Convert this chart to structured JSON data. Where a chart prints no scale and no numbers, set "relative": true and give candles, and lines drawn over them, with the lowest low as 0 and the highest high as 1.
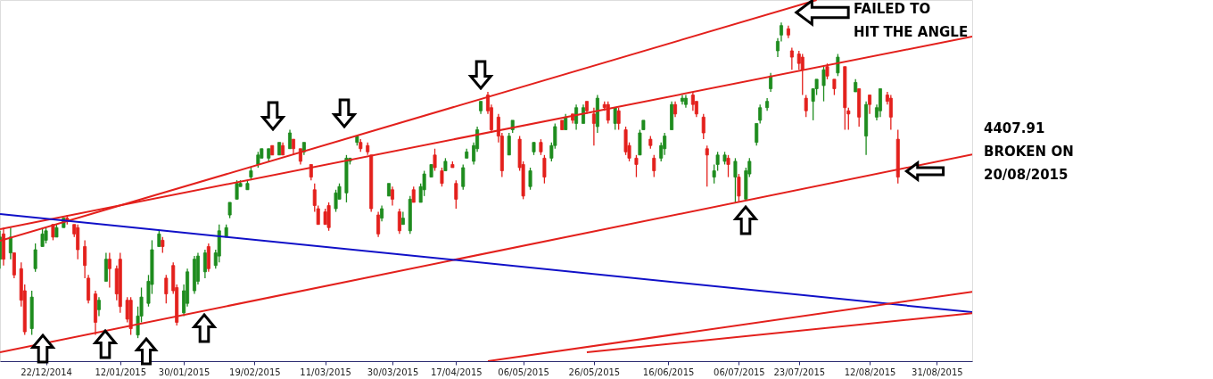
{
  "chart_data": {
    "type": "candlestick",
    "relative": true,
    "annotations": [
      "FAILED TO\nHIT THE ANGLE",
      "4407.91\nBROKEN ON\n20/08/2015"
    ],
    "colors": [
      "#1e8c1e",
      "#e3201c",
      "#1e8c1e",
      "#e3201c",
      "#e3201c",
      "#e3201c",
      "#1e8c1e",
      "#1e8c1e",
      "#1e8c1e",
      "#1e8c1e",
      "#e3201c",
      "#1e8c1e",
      "#1e8c1e",
      "#e3201c",
      "#e3201c",
      "#e3201c",
      "#e3201c",
      "#e3201c",
      "#e3201c",
      "#1e8c1e",
      "#1e8c1e",
      "#e3201c",
      "#e3201c",
      "#e3201c",
      "#e3201c",
      "#e3201c",
      "#1e8c1e",
      "#1e8c1e",
      "#1e8c1e",
      "#1e8c1e",
      "#1e8c1e",
      "#e3201c",
      "#e3201c",
      "#e3201c",
      "#e3201c",
      "#1e8c1e",
      "#1e8c1e",
      "#1e8c1e",
      "#1e8c1e",
      "#1e8c1e",
      "#e3201c",
      "#1e8c1e",
      "#1e8c1e",
      "#1e8c1e",
      "#1e8c1e",
      "#1e8c1e",
      "#1e8c1e",
      "#1e8c1e",
      "#1e8c1e",
      "#1e8c1e",
      "#1e8c1e",
      "#1e8c1e",
      "#e3201c",
      "#1e8c1e",
      "#e3201c",
      "#1e8c1e",
      "#e3201c",
      "#e3201c",
      "#1e8c1e",
      "#e3201c",
      "#e3201c",
      "#e3201c",
      "#e3201c",
      "#e3201c",
      "#1e8c1e",
      "#1e8c1e",
      "#1e8c1e",
      "#1e8c1e",
      "#1e8c1e",
      "#e3201c",
      "#e3201c",
      "#e3201c",
      "#e3201c",
      "#1e8c1e",
      "#1e8c1e",
      "#e3201c",
      "#e3201c",
      "#1e8c1e",
      "#1e8c1e",
      "#e3201c",
      "#1e8c1e",
      "#1e8c1e",
      "#1e8c1e",
      "#e3201c",
      "#e3201c",
      "#1e8c1e",
      "#e3201c",
      "#e3201c",
      "#1e8c1e",
      "#1e8c1e",
      "#1e8c1e",
      "#1e8c1e",
      "#1e8c1e",
      "#e3201c",
      "#e3201c",
      "#e3201c",
      "#e3201c",
      "#1e8c1e",
      "#1e8c1e",
      "#e3201c",
      "#e3201c",
      "#1e8c1e",
      "#1e8c1e",
      "#e3201c",
      "#e3201c",
      "#1e8c1e",
      "#1e8c1e",
      "#e3201c",
      "#1e8c1e",
      "#e3201c",
      "#1e8c1e",
      "#1e8c1e",
      "#e3201c",
      "#e3201c",
      "#1e8c1e",
      "#e3201c",
      "#e3201c",
      "#1e8c1e",
      "#e3201c",
      "#e3201c",
      "#e3201c",
      "#e3201c",
      "#1e8c1e",
      "#1e8c1e",
      "#e3201c",
      "#e3201c",
      "#1e8c1e",
      "#1e8c1e",
      "#1e8c1e",
      "#e3201c",
      "#1e8c1e",
      "#1e8c1e",
      "#e3201c",
      "#e3201c",
      "#e3201c",
      "#e3201c",
      "#1e8c1e",
      "#1e8c1e",
      "#1e8c1e",
      "#e3201c",
      "#1e8c1e",
      "#e3201c",
      "#1e8c1e",
      "#1e8c1e",
      "#1e8c1e",
      "#1e8c1e",
      "#1e8c1e",
      "#1e8c1e",
      "#1e8c1e",
      "#1e8c1e",
      "#e3201c",
      "#e3201c",
      "#e3201c",
      "#e3201c",
      "#e3201c",
      "#1e8c1e",
      "#1e8c1e",
      "#1e8c1e",
      "#e3201c",
      "#e3201c",
      "#1e8c1e",
      "#e3201c",
      "#e3201c",
      "#1e8c1e",
      "#e3201c",
      "#1e8c1e",
      "#e3201c",
      "#1e8c1e",
      "#1e8c1e",
      "#e3201c",
      "#e3201c",
      "#e3201c"
    ],
    "xlim": [
      "2014-12-09",
      "2015-09-10"
    ],
    "xticks": [
      {
        "value": "2014-12-22",
        "label": "22/12/2014"
      },
      {
        "value": "2015-01-12",
        "label": "12/01/2015"
      },
      {
        "value": "2015-01-30",
        "label": "30/01/2015"
      },
      {
        "value": "2015-02-19",
        "label": "19/02/2015"
      },
      {
        "value": "2015-03-11",
        "label": "11/03/2015"
      },
      {
        "value": "2015-03-30",
        "label": "30/03/2015"
      },
      {
        "value": "2015-04-17",
        "label": "17/04/2015"
      },
      {
        "value": "2015-05-06",
        "label": "06/05/2015"
      },
      {
        "value": "2015-05-26",
        "label": "26/05/2015"
      },
      {
        "value": "2015-06-16",
        "label": "16/06/2015"
      },
      {
        "value": "2015-07-06",
        "label": "06/07/2015"
      },
      {
        "value": "2015-07-23",
        "label": "23/07/2015"
      },
      {
        "value": "2015-08-12",
        "label": "12/08/2015"
      },
      {
        "value": "2015-08-31",
        "label": "31/08/2015"
      }
    ],
    "x": [
      "2014-12-09",
      "2014-12-10",
      "2014-12-12",
      "2014-12-13",
      "2014-12-15",
      "2014-12-16",
      "2014-12-18",
      "2014-12-19",
      "2014-12-21",
      "2014-12-22",
      "2014-12-24",
      "2014-12-25",
      "2014-12-27",
      "2014-12-28",
      "2014-12-30",
      "2014-12-31",
      "2015-01-02",
      "2015-01-03",
      "2015-01-05",
      "2015-01-06",
      "2015-01-08",
      "2015-01-09",
      "2015-01-11",
      "2015-01-12",
      "2015-01-14",
      "2015-01-15",
      "2015-01-17",
      "2015-01-18",
      "2015-01-20",
      "2015-01-21",
      "2015-01-23",
      "2015-01-24",
      "2015-01-25",
      "2015-01-27",
      "2015-01-28",
      "2015-01-30",
      "2015-01-31",
      "2015-02-02",
      "2015-02-03",
      "2015-02-05",
      "2015-02-06",
      "2015-02-08",
      "2015-02-09",
      "2015-02-11",
      "2015-02-12",
      "2015-02-14",
      "2015-02-15",
      "2015-02-17",
      "2015-02-18",
      "2015-02-20",
      "2015-02-21",
      "2015-02-23",
      "2015-02-24",
      "2015-02-26",
      "2015-02-27",
      "2015-03-01",
      "2015-03-02",
      "2015-03-04",
      "2015-03-05",
      "2015-03-07",
      "2015-03-08",
      "2015-03-09",
      "2015-03-11",
      "2015-03-12",
      "2015-03-14",
      "2015-03-15",
      "2015-03-17",
      "2015-03-18",
      "2015-03-20",
      "2015-03-21",
      "2015-03-23",
      "2015-03-24",
      "2015-03-26",
      "2015-03-27",
      "2015-03-29",
      "2015-03-30",
      "2015-04-01",
      "2015-04-02",
      "2015-04-04",
      "2015-04-05",
      "2015-04-07",
      "2015-04-08",
      "2015-04-10",
      "2015-04-11",
      "2015-04-13",
      "2015-04-14",
      "2015-04-16",
      "2015-04-17",
      "2015-04-19",
      "2015-04-20",
      "2015-04-22",
      "2015-04-23",
      "2015-04-24",
      "2015-04-26",
      "2015-04-27",
      "2015-04-29",
      "2015-04-30",
      "2015-05-02",
      "2015-05-03",
      "2015-05-05",
      "2015-05-06",
      "2015-05-08",
      "2015-05-09",
      "2015-05-11",
      "2015-05-12",
      "2015-05-14",
      "2015-05-15",
      "2015-05-17",
      "2015-05-18",
      "2015-05-20",
      "2015-05-21",
      "2015-05-23",
      "2015-05-24",
      "2015-05-26",
      "2015-05-27",
      "2015-05-29",
      "2015-05-30",
      "2015-06-01",
      "2015-06-02",
      "2015-06-04",
      "2015-06-05",
      "2015-06-07",
      "2015-06-08",
      "2015-06-09",
      "2015-06-11",
      "2015-06-12",
      "2015-06-14",
      "2015-06-15",
      "2015-06-17",
      "2015-06-18",
      "2015-06-20",
      "2015-06-21",
      "2015-06-23",
      "2015-06-24",
      "2015-06-26",
      "2015-06-27",
      "2015-06-29",
      "2015-06-30",
      "2015-07-02",
      "2015-07-03",
      "2015-07-05",
      "2015-07-06",
      "2015-07-08",
      "2015-07-09",
      "2015-07-11",
      "2015-07-12",
      "2015-07-14",
      "2015-07-15",
      "2015-07-17",
      "2015-07-18",
      "2015-07-20",
      "2015-07-21",
      "2015-07-23",
      "2015-07-24",
      "2015-07-25",
      "2015-07-27",
      "2015-07-28",
      "2015-07-30",
      "2015-07-31",
      "2015-08-02",
      "2015-08-03",
      "2015-08-05",
      "2015-08-06",
      "2015-08-08",
      "2015-08-09",
      "2015-08-11",
      "2015-08-12",
      "2015-08-14",
      "2015-08-15",
      "2015-08-17",
      "2015-08-18",
      "2015-08-20"
    ],
    "ohlc": [
      [
        0.25,
        0.34,
        0.22,
        0.32
      ],
      [
        0.33,
        0.35,
        0.23,
        0.25
      ],
      [
        0.27,
        0.35,
        0.25,
        0.32
      ],
      [
        0.27,
        0.27,
        0.19,
        0.2
      ],
      [
        0.22,
        0.24,
        0.1,
        0.12
      ],
      [
        0.15,
        0.17,
        0.01,
        0.02
      ],
      [
        0.03,
        0.15,
        0.01,
        0.13
      ],
      [
        0.22,
        0.3,
        0.21,
        0.28
      ],
      [
        0.29,
        0.35,
        0.29,
        0.33
      ],
      [
        0.31,
        0.35,
        0.3,
        0.34
      ],
      [
        0.36,
        0.36,
        0.31,
        0.32
      ],
      [
        0.32,
        0.36,
        0.32,
        0.35
      ],
      [
        0.35,
        0.38,
        0.35,
        0.38
      ],
      [
        0.38,
        0.39,
        0.36,
        0.37
      ],
      [
        0.36,
        0.36,
        0.32,
        0.33
      ],
      [
        0.35,
        0.36,
        0.25,
        0.28
      ],
      [
        0.29,
        0.31,
        0.19,
        0.23
      ],
      [
        0.19,
        0.2,
        0.11,
        0.12
      ],
      [
        0.14,
        0.15,
        0.01,
        0.05
      ],
      [
        0.09,
        0.13,
        0.07,
        0.12
      ],
      [
        0.18,
        0.27,
        0.18,
        0.25
      ],
      [
        0.25,
        0.27,
        0.16,
        0.22
      ],
      [
        0.22,
        0.23,
        0.12,
        0.14
      ],
      [
        0.25,
        0.27,
        0.08,
        0.1
      ],
      [
        0.12,
        0.13,
        0.05,
        0.06
      ],
      [
        0.12,
        0.13,
        0.01,
        0.03
      ],
      [
        0.01,
        0.1,
        0,
        0.07
      ],
      [
        0.07,
        0.16,
        0.05,
        0.13
      ],
      [
        0.11,
        0.2,
        0.1,
        0.18
      ],
      [
        0.17,
        0.31,
        0.14,
        0.28
      ],
      [
        0.29,
        0.34,
        0.29,
        0.33
      ],
      [
        0.31,
        0.32,
        0.27,
        0.29
      ],
      [
        0.19,
        0.2,
        0.11,
        0.14
      ],
      [
        0.23,
        0.24,
        0.14,
        0.15
      ],
      [
        0.16,
        0.17,
        0.04,
        0.05
      ],
      [
        0.08,
        0.17,
        0.07,
        0.15
      ],
      [
        0.11,
        0.22,
        0.1,
        0.21
      ],
      [
        0.15,
        0.26,
        0.14,
        0.25
      ],
      [
        0.18,
        0.27,
        0.17,
        0.26
      ],
      [
        0.21,
        0.28,
        0.19,
        0.27
      ],
      [
        0.29,
        0.3,
        0.21,
        0.22
      ],
      [
        0.23,
        0.28,
        0.22,
        0.27
      ],
      [
        0.26,
        0.36,
        0.24,
        0.34
      ],
      [
        0.32,
        0.36,
        0.32,
        0.35
      ],
      [
        0.39,
        0.43,
        0.38,
        0.43
      ],
      [
        0.44,
        0.5,
        0.44,
        0.49
      ],
      [
        0.48,
        0.5,
        0.48,
        0.49
      ],
      [
        0.47,
        0.5,
        0.47,
        0.49
      ],
      [
        0.51,
        0.54,
        0.5,
        0.53
      ],
      [
        0.55,
        0.59,
        0.54,
        0.58
      ],
      [
        0.57,
        0.6,
        0.57,
        0.6
      ],
      [
        0.57,
        0.6,
        0.56,
        0.6
      ],
      [
        0.61,
        0.61,
        0.58,
        0.58
      ],
      [
        0.58,
        0.62,
        0.58,
        0.62
      ],
      [
        0.61,
        0.62,
        0.58,
        0.58
      ],
      [
        0.6,
        0.66,
        0.6,
        0.65
      ],
      [
        0.63,
        0.63,
        0.58,
        0.6
      ],
      [
        0.6,
        0.6,
        0.55,
        0.56
      ],
      [
        0.59,
        0.62,
        0.58,
        0.62
      ],
      [
        0.55,
        0.55,
        0.5,
        0.51
      ],
      [
        0.47,
        0.49,
        0.4,
        0.42
      ],
      [
        0.41,
        0.42,
        0.36,
        0.36
      ],
      [
        0.4,
        0.41,
        0.36,
        0.36
      ],
      [
        0.42,
        0.43,
        0.34,
        0.35
      ],
      [
        0.41,
        0.47,
        0.4,
        0.46
      ],
      [
        0.44,
        0.49,
        0.44,
        0.48
      ],
      [
        0.46,
        0.58,
        0.43,
        0.57
      ],
      [
        0.56,
        0.57,
        0.55,
        0.57
      ],
      [
        0.62,
        0.64,
        0.61,
        0.64
      ],
      [
        0.62,
        0.63,
        0.59,
        0.6
      ],
      [
        0.61,
        0.62,
        0.58,
        0.59
      ],
      [
        0.58,
        0.58,
        0.4,
        0.41
      ],
      [
        0.39,
        0.4,
        0.32,
        0.33
      ],
      [
        0.38,
        0.42,
        0.37,
        0.41
      ],
      [
        0.45,
        0.49,
        0.45,
        0.49
      ],
      [
        0.47,
        0.48,
        0.42,
        0.44
      ],
      [
        0.4,
        0.41,
        0.33,
        0.34
      ],
      [
        0.36,
        0.4,
        0.36,
        0.38
      ],
      [
        0.34,
        0.45,
        0.33,
        0.44
      ],
      [
        0.47,
        0.48,
        0.43,
        0.43
      ],
      [
        0.43,
        0.49,
        0.43,
        0.48
      ],
      [
        0.47,
        0.53,
        0.45,
        0.52
      ],
      [
        0.51,
        0.55,
        0.51,
        0.55
      ],
      [
        0.58,
        0.6,
        0.53,
        0.54
      ],
      [
        0.53,
        0.54,
        0.48,
        0.49
      ],
      [
        0.53,
        0.57,
        0.53,
        0.56
      ],
      [
        0.55,
        0.56,
        0.54,
        0.54
      ],
      [
        0.49,
        0.5,
        0.41,
        0.44
      ],
      [
        0.48,
        0.55,
        0.47,
        0.54
      ],
      [
        0.57,
        0.6,
        0.57,
        0.59
      ],
      [
        0.56,
        0.62,
        0.55,
        0.61
      ],
      [
        0.6,
        0.67,
        0.59,
        0.66
      ],
      [
        0.72,
        0.75,
        0.71,
        0.75
      ],
      [
        0.77,
        0.78,
        0.71,
        0.72
      ],
      [
        0.73,
        0.74,
        0.65,
        0.66
      ],
      [
        0.7,
        0.71,
        0.62,
        0.64
      ],
      [
        0.64,
        0.65,
        0.51,
        0.53
      ],
      [
        0.58,
        0.65,
        0.58,
        0.64
      ],
      [
        0.66,
        0.69,
        0.65,
        0.69
      ],
      [
        0.63,
        0.64,
        0.53,
        0.54
      ],
      [
        0.55,
        0.56,
        0.44,
        0.45
      ],
      [
        0.48,
        0.54,
        0.47,
        0.53
      ],
      [
        0.59,
        0.62,
        0.58,
        0.62
      ],
      [
        0.62,
        0.63,
        0.58,
        0.59
      ],
      [
        0.57,
        0.58,
        0.49,
        0.51
      ],
      [
        0.57,
        0.62,
        0.56,
        0.61
      ],
      [
        0.61,
        0.68,
        0.6,
        0.67
      ],
      [
        0.69,
        0.69,
        0.66,
        0.66
      ],
      [
        0.66,
        0.71,
        0.66,
        0.7
      ],
      [
        0.71,
        0.71,
        0.68,
        0.69
      ],
      [
        0.68,
        0.74,
        0.66,
        0.73
      ],
      [
        0.68,
        0.74,
        0.68,
        0.73
      ],
      [
        0.75,
        0.75,
        0.71,
        0.72
      ],
      [
        0.71,
        0.73,
        0.61,
        0.68
      ],
      [
        0.67,
        0.77,
        0.65,
        0.76
      ],
      [
        0.74,
        0.75,
        0.72,
        0.73
      ],
      [
        0.74,
        0.75,
        0.68,
        0.69
      ],
      [
        0.68,
        0.73,
        0.66,
        0.73
      ],
      [
        0.72,
        0.73,
        0.66,
        0.68
      ],
      [
        0.66,
        0.67,
        0.58,
        0.59
      ],
      [
        0.61,
        0.62,
        0.56,
        0.57
      ],
      [
        0.57,
        0.58,
        0.51,
        0.55
      ],
      [
        0.58,
        0.66,
        0.58,
        0.65
      ],
      [
        0.66,
        0.69,
        0.66,
        0.69
      ],
      [
        0.63,
        0.64,
        0.6,
        0.61
      ],
      [
        0.57,
        0.58,
        0.51,
        0.53
      ],
      [
        0.57,
        0.62,
        0.56,
        0.61
      ],
      [
        0.6,
        0.65,
        0.58,
        0.64
      ],
      [
        0.66,
        0.75,
        0.66,
        0.74
      ],
      [
        0.74,
        0.75,
        0.7,
        0.71
      ],
      [
        0.75,
        0.77,
        0.74,
        0.76
      ],
      [
        0.74,
        0.77,
        0.73,
        0.76
      ],
      [
        0.77,
        0.78,
        0.72,
        0.74
      ],
      [
        0.75,
        0.75,
        0.7,
        0.71
      ],
      [
        0.7,
        0.71,
        0.63,
        0.65
      ],
      [
        0.6,
        0.61,
        0.48,
        0.58
      ],
      [
        0.51,
        0.55,
        0.49,
        0.53
      ],
      [
        0.55,
        0.59,
        0.53,
        0.58
      ],
      [
        0.56,
        0.59,
        0.55,
        0.58
      ],
      [
        0.57,
        0.58,
        0.51,
        0.55
      ],
      [
        0.51,
        0.57,
        0.43,
        0.56
      ],
      [
        0.51,
        0.52,
        0.43,
        0.45
      ],
      [
        0.44,
        0.54,
        0.44,
        0.53
      ],
      [
        0.52,
        0.57,
        0.51,
        0.56
      ],
      [
        0.62,
        0.68,
        0.61,
        0.68
      ],
      [
        0.69,
        0.74,
        0.68,
        0.73
      ],
      [
        0.73,
        0.76,
        0.72,
        0.75
      ],
      [
        0.79,
        0.84,
        0.78,
        0.83
      ],
      [
        0.91,
        0.95,
        0.89,
        0.94
      ],
      [
        0.96,
        1,
        0.94,
        0.99
      ],
      [
        0.98,
        0.99,
        0.95,
        0.96
      ],
      [
        0.91,
        0.92,
        0.85,
        0.89
      ],
      [
        0.9,
        0.91,
        0.85,
        0.87
      ],
      [
        0.89,
        0.9,
        0.77,
        0.85
      ],
      [
        0.76,
        0.77,
        0.7,
        0.72
      ],
      [
        0.75,
        0.79,
        0.69,
        0.79
      ],
      [
        0.79,
        0.82,
        0.77,
        0.82
      ],
      [
        0.8,
        0.86,
        0.75,
        0.85
      ],
      [
        0.86,
        0.87,
        0.82,
        0.83
      ],
      [
        0.82,
        0.82,
        0.77,
        0.79
      ],
      [
        0.84,
        0.9,
        0.83,
        0.89
      ],
      [
        0.86,
        0.86,
        0.66,
        0.73
      ],
      [
        0.72,
        0.73,
        0.66,
        0.71
      ],
      [
        0.78,
        0.82,
        0.78,
        0.81
      ],
      [
        0.79,
        0.79,
        0.67,
        0.7
      ],
      [
        0.64,
        0.75,
        0.58,
        0.74
      ],
      [
        0.77,
        0.77,
        0.71,
        0.74
      ],
      [
        0.7,
        0.74,
        0.69,
        0.73
      ],
      [
        0.72,
        0.79,
        0.7,
        0.79
      ],
      [
        0.77,
        0.78,
        0.74,
        0.75
      ],
      [
        0.76,
        0.77,
        0.66,
        0.7
      ],
      [
        0.63,
        0.66,
        0.49,
        0.51
      ]
    ],
    "series": [
      {
        "type": "line",
        "color": "#e3201c",
        "x": [
          "2014-12-09",
          "2015-07-28"
        ],
        "values": [
          0.308,
          1.071
        ]
      },
      {
        "type": "line",
        "color": "#e3201c",
        "x": [
          "2014-12-09",
          "2015-09-10"
        ],
        "values": [
          0.345,
          0.955
        ]
      },
      {
        "type": "line",
        "color": "#e3201c",
        "x": [
          "2014-12-09",
          "2015-09-10"
        ],
        "values": [
          -0.045,
          0.582
        ]
      },
      {
        "type": "line",
        "color": "#1010c8",
        "x": [
          "2014-12-09",
          "2015-09-10"
        ],
        "values": [
          0.393,
          0.082
        ]
      },
      {
        "type": "line",
        "color": "#e3201c",
        "x": [
          "2015-04-26",
          "2015-09-10"
        ],
        "values": [
          -0.073,
          0.147
        ]
      },
      {
        "type": "line",
        "color": "#e3201c",
        "x": [
          "2015-05-24",
          "2015-09-10"
        ],
        "values": [
          -0.045,
          0.079
        ]
      }
    ]
  }
}
